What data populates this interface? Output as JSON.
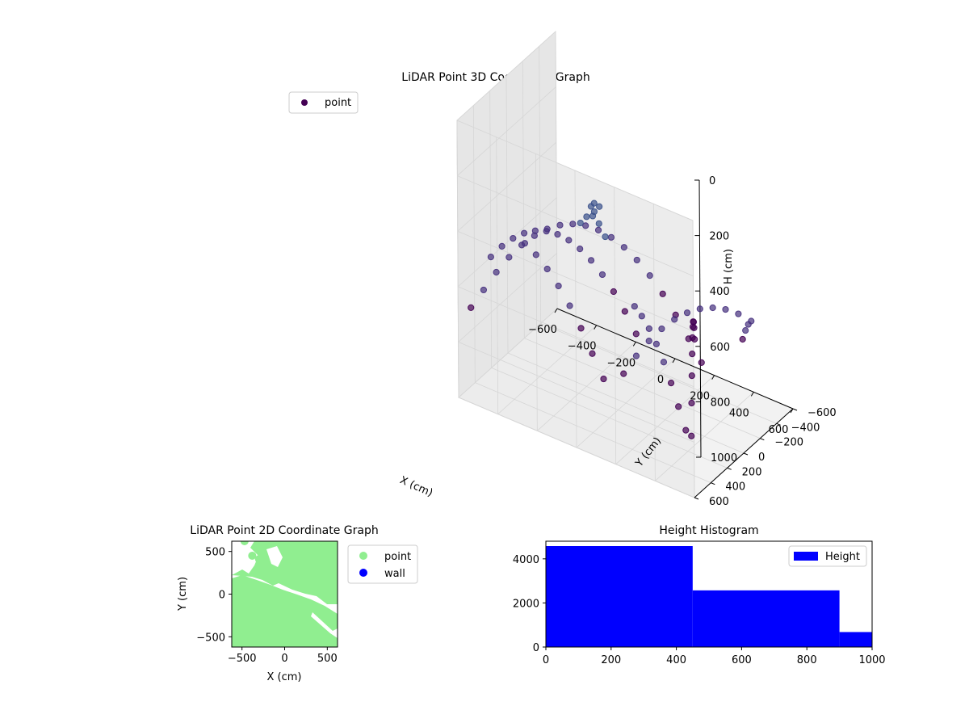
{
  "figure": {
    "colors": {
      "background": "#ffffff",
      "pane": "#f2f2f2",
      "grid": "#d6d6d6",
      "axis": "#000000"
    }
  },
  "chart_data": [
    {
      "type": "scatter",
      "projection": "3d",
      "title": "LiDAR Point 3D Coordinate Graph",
      "xlabel": "X (cm)",
      "ylabel": "Y (cm)",
      "zlabel": "H (cm)",
      "xlim": [
        -600,
        600
      ],
      "ylim": [
        -600,
        600
      ],
      "zlim": [
        0,
        1000
      ],
      "z_inverted": true,
      "x_ticks": [
        "−600",
        "−400",
        "−200",
        "0",
        "200",
        "400",
        "600"
      ],
      "y_ticks": [
        "−600",
        "−400",
        "−200",
        "0",
        "200",
        "400",
        "600"
      ],
      "z_ticks": [
        "0",
        "200",
        "400",
        "600",
        "800",
        "1000"
      ],
      "grid": true,
      "legend": {
        "position": "top-left",
        "entries": [
          "point"
        ]
      },
      "series": [
        {
          "name": "point",
          "color": "#440154",
          "colormap": "viridis",
          "note_color_by": "height",
          "points": [
            [
              -560,
              540,
              680
            ],
            [
              -520,
              480,
              620
            ],
            [
              -480,
              420,
              560
            ],
            [
              -440,
              360,
              510
            ],
            [
              -400,
              300,
              470
            ],
            [
              -360,
              240,
              440
            ],
            [
              -320,
              180,
              420
            ],
            [
              -280,
              120,
              410
            ],
            [
              -240,
              60,
              410
            ],
            [
              -200,
              0,
              420
            ],
            [
              -160,
              -60,
              440
            ],
            [
              -120,
              -120,
              470
            ],
            [
              -80,
              -180,
              510
            ],
            [
              -40,
              -240,
              560
            ],
            [
              0,
              -300,
              620
            ],
            [
              40,
              -360,
              690
            ],
            [
              80,
              -420,
              770
            ],
            [
              120,
              -480,
              860
            ],
            [
              160,
              -540,
              950
            ],
            [
              -600,
              200,
              600
            ],
            [
              -560,
              160,
              560
            ],
            [
              -520,
              120,
              530
            ],
            [
              -480,
              80,
              510
            ],
            [
              -440,
              40,
              500
            ],
            [
              -400,
              0,
              500
            ],
            [
              -360,
              -40,
              510
            ],
            [
              -320,
              -80,
              530
            ],
            [
              -280,
              -120,
              560
            ],
            [
              -240,
              -160,
              600
            ],
            [
              -200,
              -200,
              650
            ],
            [
              -160,
              -240,
              710
            ],
            [
              -120,
              -280,
              780
            ],
            [
              -80,
              -320,
              860
            ],
            [
              200,
              500,
              700
            ],
            [
              240,
              440,
              640
            ],
            [
              280,
              380,
              590
            ],
            [
              320,
              320,
              550
            ],
            [
              360,
              260,
              520
            ],
            [
              400,
              200,
              500
            ],
            [
              440,
              140,
              490
            ],
            [
              480,
              80,
              490
            ],
            [
              520,
              20,
              500
            ],
            [
              560,
              -40,
              520
            ],
            [
              600,
              -100,
              550
            ],
            [
              560,
              -160,
              590
            ],
            [
              520,
              -220,
              640
            ],
            [
              480,
              -280,
              700
            ],
            [
              -100,
              300,
              300
            ],
            [
              -60,
              320,
              260
            ],
            [
              -20,
              340,
              240
            ],
            [
              20,
              360,
              250
            ],
            [
              60,
              380,
              280
            ],
            [
              -20,
              360,
              200
            ],
            [
              0,
              370,
              180
            ],
            [
              20,
              355,
              190
            ],
            [
              -10,
              345,
              220
            ],
            [
              300,
              600,
              400
            ],
            [
              320,
              560,
              440
            ],
            [
              340,
              520,
              490
            ],
            [
              360,
              480,
              550
            ],
            [
              380,
              440,
              620
            ],
            [
              400,
              400,
              700
            ],
            [
              420,
              360,
              790
            ],
            [
              440,
              320,
              880
            ],
            [
              -300,
              500,
              380
            ],
            [
              -260,
              460,
              420
            ],
            [
              -220,
              420,
              470
            ],
            [
              -180,
              380,
              530
            ],
            [
              -140,
              340,
              600
            ],
            [
              -100,
              300,
              680
            ],
            [
              -60,
              260,
              770
            ],
            [
              -20,
              220,
              860
            ],
            [
              100,
              -600,
              900
            ],
            [
              140,
              -500,
              820
            ],
            [
              180,
              -400,
              760
            ],
            [
              220,
              -300,
              720
            ],
            [
              260,
              -200,
              700
            ],
            [
              300,
              -100,
              700
            ],
            [
              340,
              0,
              720
            ],
            [
              380,
              100,
              760
            ],
            [
              420,
              200,
              820
            ],
            [
              460,
              300,
              900
            ]
          ]
        }
      ]
    },
    {
      "type": "scatter",
      "title": "LiDAR Point 2D Coordinate Graph",
      "xlabel": "X (cm)",
      "ylabel": "Y (cm)",
      "xlim": [
        -620,
        620
      ],
      "ylim": [
        -620,
        620
      ],
      "x_ticks": [
        -500,
        0,
        500
      ],
      "y_ticks": [
        -500,
        0,
        500
      ],
      "grid": false,
      "legend": {
        "position": "outside-right",
        "entries": [
          "point",
          "wall"
        ]
      },
      "series": [
        {
          "name": "point",
          "color": "#90ee90"
        },
        {
          "name": "wall",
          "color": "#0000ff",
          "points": []
        }
      ]
    },
    {
      "type": "bar",
      "subtype": "histogram",
      "title": "Height Histogram",
      "xlabel": "",
      "ylabel": "",
      "xlim": [
        0,
        1000
      ],
      "ylim": [
        0,
        4800
      ],
      "x_ticks": [
        0,
        200,
        400,
        600,
        800,
        1000
      ],
      "y_ticks": [
        0,
        2000,
        4000
      ],
      "grid": false,
      "legend": {
        "position": "top-right",
        "entries": [
          "Height"
        ]
      },
      "series": [
        {
          "name": "Height",
          "color": "#0000ff",
          "bins": [
            {
              "x0": 0,
              "x1": 450,
              "value": 4580
            },
            {
              "x0": 450,
              "x1": 900,
              "value": 2570
            },
            {
              "x0": 900,
              "x1": 1000,
              "value": 680
            }
          ]
        }
      ]
    }
  ]
}
